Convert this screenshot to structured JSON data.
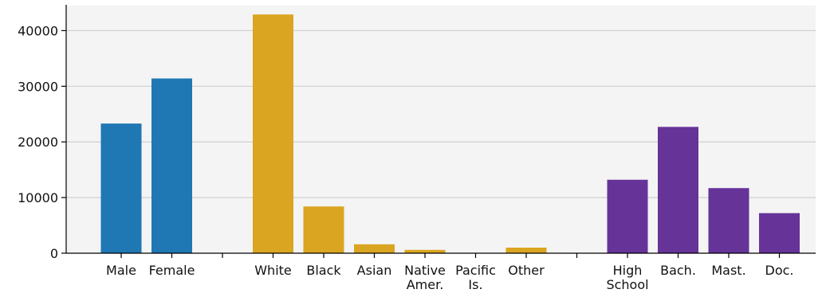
{
  "chart_data": {
    "type": "bar",
    "title": "",
    "xlabel": "",
    "ylabel": "",
    "ylim": [
      0,
      44500
    ],
    "yticks": [
      0,
      10000,
      20000,
      30000,
      40000
    ],
    "grid": true,
    "background_color": "#f4f4f4",
    "groups": [
      {
        "color": "#1f77b4",
        "categories": [
          [
            "Male"
          ],
          [
            "Female"
          ]
        ],
        "values": [
          23300,
          31400
        ]
      },
      {
        "color": "#daa520",
        "categories": [
          [
            "White"
          ],
          [
            "Black"
          ],
          [
            "Asian"
          ],
          [
            "Native",
            "Amer."
          ],
          [
            "Pacific",
            "Is."
          ],
          [
            "Other"
          ]
        ],
        "values": [
          42900,
          8400,
          1600,
          600,
          0,
          1000
        ]
      },
      {
        "color": "#663399",
        "categories": [
          [
            "High",
            "School"
          ],
          [
            "Bach."
          ],
          [
            "Mast."
          ],
          [
            "Doc."
          ]
        ],
        "values": [
          13200,
          22700,
          11700,
          7200
        ]
      }
    ]
  }
}
